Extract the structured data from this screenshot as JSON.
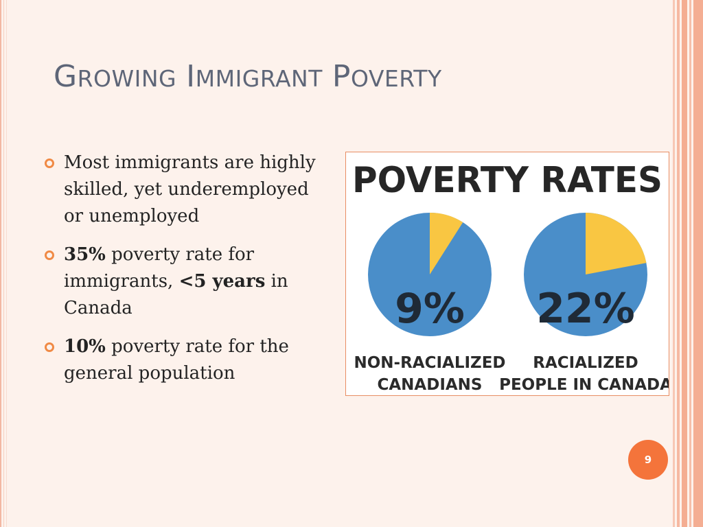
{
  "slide": {
    "title_words": [
      {
        "cap": "G",
        "rest": "ROWING"
      },
      {
        "cap": "I",
        "rest": "MMIGRANT"
      },
      {
        "cap": "P",
        "rest": "OVERTY"
      }
    ],
    "page_number": "9"
  },
  "bullets": [
    {
      "parts": [
        {
          "text": "Most immigrants are highly skilled, yet underemployed or unemployed",
          "bold": false
        }
      ]
    },
    {
      "parts": [
        {
          "text": "35%",
          "bold": true
        },
        {
          "text": " poverty rate for immigrants, ",
          "bold": false
        },
        {
          "text": "<5 years",
          "bold": true
        },
        {
          "text": " in Canada",
          "bold": false
        }
      ]
    },
    {
      "parts": [
        {
          "text": "10%",
          "bold": true
        },
        {
          "text": " poverty rate for the general population",
          "bold": false
        }
      ]
    }
  ],
  "colors": {
    "accent": "#f4743b",
    "pie_blue": "#4a8ec9",
    "pie_yellow": "#f9c642",
    "title_text": "#5e6678"
  },
  "chart_data": {
    "type": "pie",
    "title": "POVERTY RATES",
    "charts": [
      {
        "label_lines": [
          "NON-RACIALIZED",
          "CANADIANS"
        ],
        "value": 9,
        "value_label": "9%"
      },
      {
        "label_lines": [
          "RACIALIZED",
          "PEOPLE IN CANADA"
        ],
        "value": 22,
        "value_label": "22%"
      }
    ]
  }
}
